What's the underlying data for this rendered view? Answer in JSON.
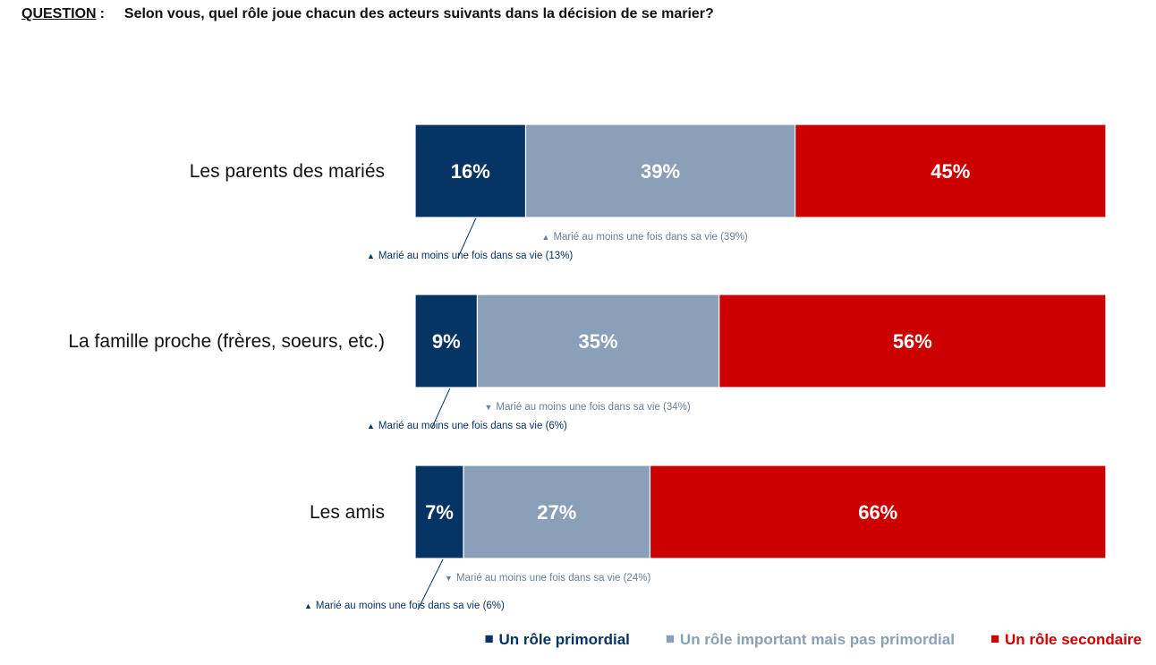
{
  "question": {
    "label": "QUESTION",
    "separator": ":",
    "text": "Selon vous, quel rôle joue chacun des acteurs suivants dans la décision de se marier?"
  },
  "chart_data": {
    "type": "bar",
    "orientation": "horizontal",
    "stacked": true,
    "title": "",
    "xlabel": "",
    "ylabel": "",
    "xlim": [
      0,
      100
    ],
    "grid": false,
    "legend_position": "bottom-right",
    "categories": [
      "Les parents des mariés",
      "La famille proche (frères, soeurs, etc.)",
      "Les amis"
    ],
    "series": [
      {
        "name": "Un rôle primordial",
        "color": "#063465",
        "values": [
          16,
          9,
          7
        ],
        "labels": [
          "16%",
          "9%",
          "7%"
        ]
      },
      {
        "name": "Un rôle important mais pas primordial",
        "color": "#8a9fb8",
        "values": [
          39,
          35,
          27
        ],
        "labels": [
          "39%",
          "35%",
          "27%"
        ]
      },
      {
        "name": "Un rôle secondaire",
        "color": "#cc0000",
        "values": [
          45,
          56,
          66
        ],
        "labels": [
          "45%",
          "56%",
          "66%"
        ]
      }
    ],
    "annotations": [
      {
        "category": 0,
        "series": 0,
        "direction": "up",
        "arrow": "▲",
        "text": "Marié au moins une fois dans sa vie (13%)",
        "value": 13
      },
      {
        "category": 0,
        "series": 1,
        "direction": "up",
        "arrow": "▲",
        "text": "Marié au moins une fois dans sa vie (39%)",
        "value": 39
      },
      {
        "category": 1,
        "series": 0,
        "direction": "up",
        "arrow": "▲",
        "text": "Marié au moins une fois dans sa vie (6%)",
        "value": 6
      },
      {
        "category": 1,
        "series": 1,
        "direction": "down",
        "arrow": "▼",
        "text": "Marié au moins une fois dans sa vie (34%)",
        "value": 34
      },
      {
        "category": 2,
        "series": 0,
        "direction": "up",
        "arrow": "▲",
        "text": "Marié au moins une fois dans sa vie (6%)",
        "value": 6
      },
      {
        "category": 2,
        "series": 1,
        "direction": "down",
        "arrow": "▼",
        "text": "Marié au moins une fois dans sa vie (24%)",
        "value": 24
      }
    ],
    "legend_marker": "■"
  }
}
